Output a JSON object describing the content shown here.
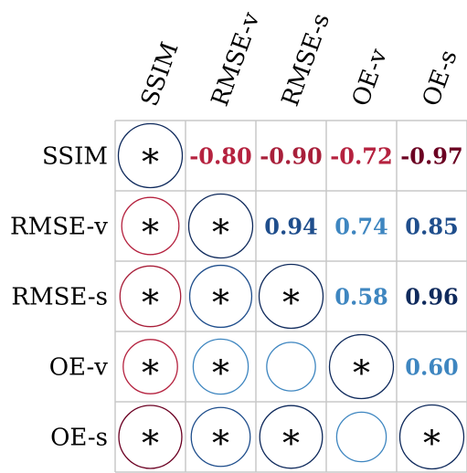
{
  "chart_data": {
    "type": "heatmap",
    "variables": [
      "SSIM",
      "RMSE-v",
      "RMSE-s",
      "OE-v",
      "OE-s"
    ],
    "row_labels": [
      "SSIM",
      "RMSE-v",
      "RMSE-s",
      "OE-v",
      "OE-s"
    ],
    "col_labels": [
      "SSIM",
      "RMSE-v",
      "RMSE-s",
      "OE-v",
      "OE-s"
    ],
    "upper_text": [
      {
        "row": 0,
        "col": 1,
        "value": -0.8,
        "text": "-0.80"
      },
      {
        "row": 0,
        "col": 2,
        "value": -0.9,
        "text": "-0.90"
      },
      {
        "row": 0,
        "col": 3,
        "value": -0.72,
        "text": "-0.72"
      },
      {
        "row": 0,
        "col": 4,
        "value": -0.97,
        "text": "-0.97"
      },
      {
        "row": 1,
        "col": 2,
        "value": 0.94,
        "text": "0.94"
      },
      {
        "row": 1,
        "col": 3,
        "value": 0.74,
        "text": "0.74"
      },
      {
        "row": 1,
        "col": 4,
        "value": 0.85,
        "text": "0.85"
      },
      {
        "row": 2,
        "col": 3,
        "value": 0.58,
        "text": "0.58"
      },
      {
        "row": 2,
        "col": 4,
        "value": 0.96,
        "text": "0.96"
      },
      {
        "row": 3,
        "col": 4,
        "value": 0.6,
        "text": "0.60"
      }
    ],
    "lower_circles": [
      {
        "row": 0,
        "col": 0,
        "value": 1.0,
        "star": true
      },
      {
        "row": 1,
        "col": 0,
        "value": -0.8,
        "star": true
      },
      {
        "row": 1,
        "col": 1,
        "value": 1.0,
        "star": true
      },
      {
        "row": 2,
        "col": 0,
        "value": -0.9,
        "star": true
      },
      {
        "row": 2,
        "col": 1,
        "value": 0.94,
        "star": true
      },
      {
        "row": 2,
        "col": 2,
        "value": 1.0,
        "star": true
      },
      {
        "row": 3,
        "col": 0,
        "value": -0.72,
        "star": true
      },
      {
        "row": 3,
        "col": 1,
        "value": 0.74,
        "star": true
      },
      {
        "row": 3,
        "col": 2,
        "value": 0.58,
        "star": false
      },
      {
        "row": 3,
        "col": 3,
        "value": 1.0,
        "star": true
      },
      {
        "row": 4,
        "col": 0,
        "value": -0.97,
        "star": true
      },
      {
        "row": 4,
        "col": 1,
        "value": 0.85,
        "star": true
      },
      {
        "row": 4,
        "col": 2,
        "value": 0.96,
        "star": true
      },
      {
        "row": 4,
        "col": 3,
        "value": 0.6,
        "star": false
      },
      {
        "row": 4,
        "col": 4,
        "value": 1.0,
        "star": true
      }
    ],
    "significance_marker": "*",
    "grid": true,
    "legend": "none",
    "colors": {
      "negative_strong": "#6b0022",
      "negative_mid": "#a81f3a",
      "negative_light": "#b5223f",
      "positive_strong": "#0f2a5c",
      "positive_mid": "#1f4e8c",
      "positive_light": "#3e86c0",
      "grid": "#c8c8c8"
    }
  }
}
